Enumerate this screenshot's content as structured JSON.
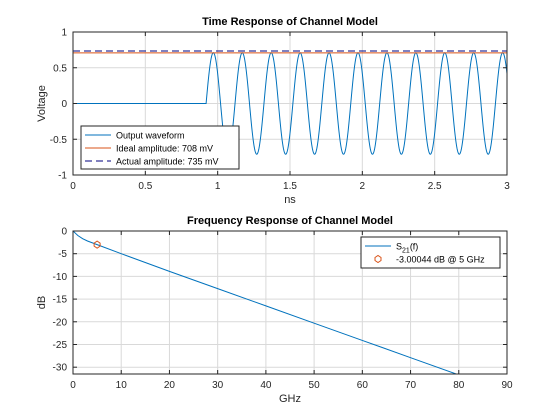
{
  "chart_data": [
    {
      "type": "line",
      "title": "Time Response of Channel Model",
      "xlabel": "ns",
      "ylabel": "Voltage",
      "xlim": [
        0,
        3
      ],
      "ylim": [
        -1,
        1
      ],
      "xticks": [
        0,
        0.5,
        1,
        1.5,
        2,
        2.5,
        3
      ],
      "xtick_labels": [
        "0",
        "0.5",
        "1",
        "1.5",
        "2",
        "2.5",
        "3"
      ],
      "yticks": [
        -1,
        -0.5,
        0,
        0.5,
        1
      ],
      "ytick_labels": [
        "-1",
        "-0.5",
        "0",
        "0.5",
        "1"
      ],
      "grid": true,
      "legend_position": "bottom-left",
      "series": [
        {
          "name": "Output waveform",
          "kind": "waveform",
          "onset_ns": 0.92,
          "period_ns": 0.2,
          "amplitude": 0.71,
          "baseline": 0,
          "color": "#0072BD"
        },
        {
          "name": "Ideal amplitude: 708 mV",
          "kind": "hline",
          "y": 0.708,
          "color": "#D95319",
          "dash": "solid"
        },
        {
          "name": "Actual amplitude: 735 mV",
          "kind": "hline",
          "y": 0.735,
          "color": "#00007F",
          "dash": "dashed"
        }
      ]
    },
    {
      "type": "line",
      "title": "Frequency Response of Channel Model",
      "xlabel": "GHz",
      "ylabel": "dB",
      "xlim": [
        0,
        90
      ],
      "ylim": [
        -31.5,
        0
      ],
      "xticks": [
        0,
        10,
        20,
        30,
        40,
        50,
        60,
        70,
        80,
        90
      ],
      "xtick_labels": [
        "0",
        "10",
        "20",
        "30",
        "40",
        "50",
        "60",
        "70",
        "80",
        "90"
      ],
      "yticks": [
        -30,
        -25,
        -20,
        -15,
        -10,
        -5,
        0
      ],
      "ytick_labels": [
        "-30",
        "-25",
        "-20",
        "-15",
        "-10",
        "-5",
        "0"
      ],
      "grid": true,
      "legend_position": "top-right",
      "series": [
        {
          "name": "S",
          "name_sub": "21",
          "name_suffix": "(f)",
          "kind": "line",
          "x": [
            0,
            1,
            2,
            3,
            5,
            10,
            20,
            30,
            40,
            50,
            60,
            70,
            80
          ],
          "y": [
            0,
            -1.0,
            -1.7,
            -2.2,
            -3.0,
            -5.0,
            -8.9,
            -12.7,
            -16.5,
            -20.3,
            -24.1,
            -27.9,
            -31.7
          ],
          "color": "#0072BD"
        },
        {
          "name": "-3.00044 dB @ 5 GHz",
          "kind": "marker",
          "x": [
            5
          ],
          "y": [
            -3.00044
          ],
          "color": "#D95319"
        }
      ]
    }
  ]
}
